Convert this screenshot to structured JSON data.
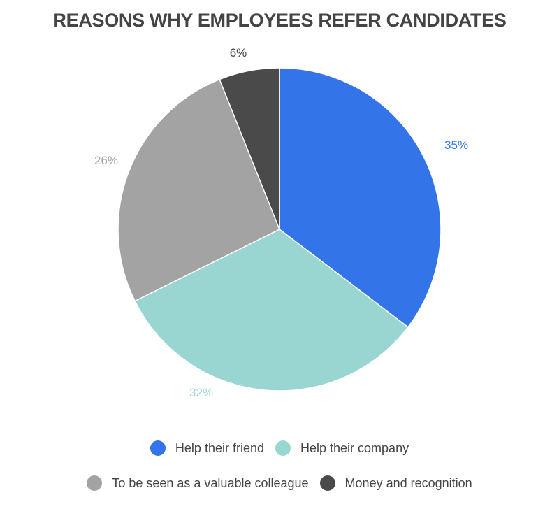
{
  "chart_data": {
    "type": "pie",
    "title": "REASONS WHY EMPLOYEES REFER CANDIDATES",
    "categories": [
      "Help their friend",
      "Help their company",
      "To be seen as a valuable colleague",
      "Money and recognition"
    ],
    "values": [
      35,
      32,
      26,
      6
    ],
    "labels": [
      "35%",
      "32%",
      "26%",
      "6%"
    ],
    "colors": [
      "#3374E8",
      "#9AD6D1",
      "#A3A3A3",
      "#4A4A4A"
    ],
    "legend_position": "bottom"
  },
  "legend": {
    "items": [
      {
        "label": "Help their friend",
        "color": "#3374E8"
      },
      {
        "label": "Help their company",
        "color": "#9AD6D1"
      },
      {
        "label": "To be seen as a valuable colleague",
        "color": "#A3A3A3"
      },
      {
        "label": "Money and recognition",
        "color": "#4A4A4A"
      }
    ]
  }
}
